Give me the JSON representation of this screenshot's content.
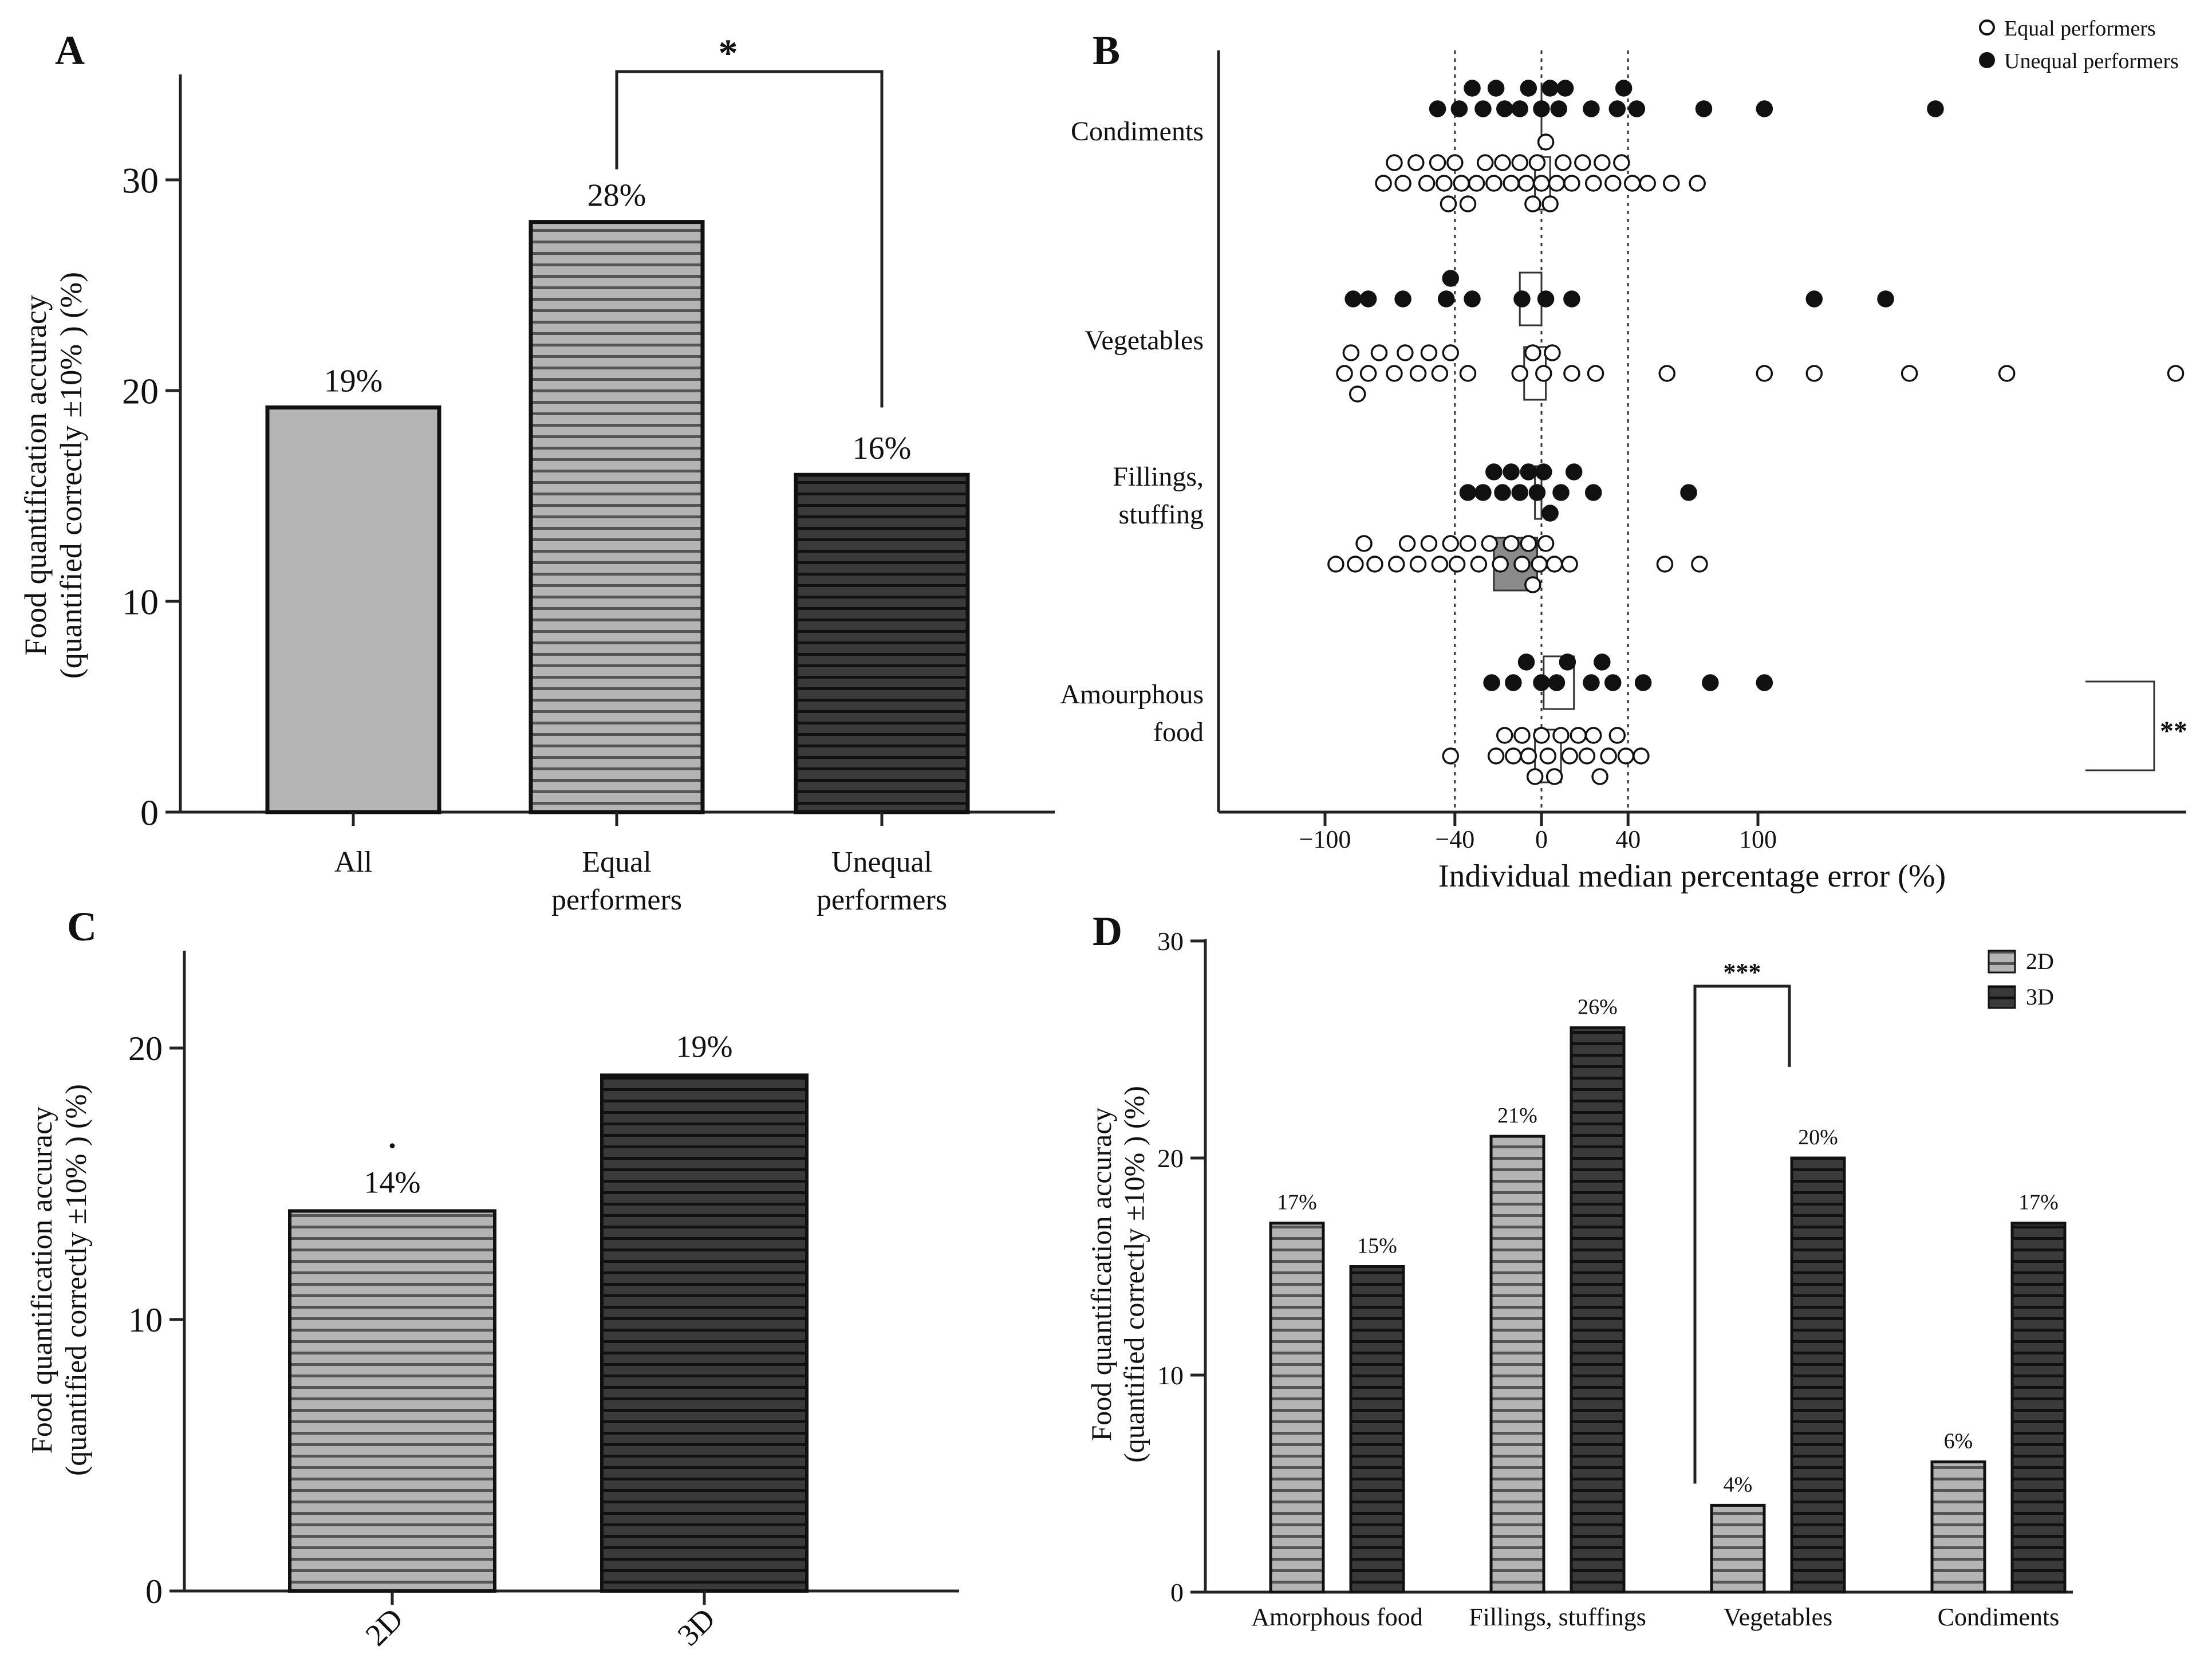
{
  "chart_data": [
    {
      "panel": "A",
      "type": "bar",
      "categories": [
        "All",
        "Equal performers",
        "Unequal performers"
      ],
      "category_lines": [
        [
          "All"
        ],
        [
          "Equal",
          "performers"
        ],
        [
          "Unequal",
          "performers"
        ]
      ],
      "values": [
        19.2,
        28,
        16
      ],
      "data_labels": [
        "19%",
        "28%",
        "16%"
      ],
      "ylabel_lines": [
        "Food quantification accuracy",
        "(quantified correctly ±10% ) (%)"
      ],
      "ylim": [
        0,
        35
      ],
      "yticks": [
        0,
        10,
        20,
        30
      ],
      "fills": [
        "#b4b4b4",
        "#b4b4b4",
        "#3a3a3a"
      ],
      "stripe_colors": [
        "",
        "#555555",
        "#111111"
      ],
      "significance": {
        "between": [
          "Equal performers",
          "Unequal performers"
        ],
        "label": "*"
      }
    },
    {
      "panel": "B",
      "type": "scatter",
      "xlabel": "Individual median percentage error (%)",
      "xlim": [
        -148,
        298
      ],
      "xticks": [
        -100,
        -40,
        0,
        40,
        100
      ],
      "xtick_labels": [
        "−100",
        "−40",
        "0",
        "40",
        "100"
      ],
      "reference_lines": [
        -40,
        0,
        40
      ],
      "legend": [
        {
          "label": "Equal performers",
          "marker": "open"
        },
        {
          "label": "Unequal performers",
          "marker": "filled"
        }
      ],
      "categories": [
        {
          "name_lines": [
            "Condiments"
          ],
          "unequal": [
            -48,
            -38,
            -32,
            -27,
            -21,
            -17,
            -10,
            -6,
            0,
            4,
            8,
            11,
            23,
            35,
            38,
            44,
            75,
            103,
            182
          ],
          "equal": [
            -73,
            -68,
            -64,
            -58,
            -53,
            -48,
            -45,
            -43,
            -40,
            -37,
            -34,
            -30,
            -26,
            -22,
            -18,
            -14,
            -10,
            -7,
            -4,
            -2,
            0,
            2,
            4,
            7,
            10,
            14,
            19,
            24,
            28,
            33,
            37,
            42,
            49,
            60,
            72
          ]
        },
        {
          "name_lines": [
            "Vegetables"
          ],
          "unequal": [
            -87,
            -80,
            -64,
            -44,
            -42,
            -32,
            -9,
            2,
            14,
            126,
            159
          ],
          "equal": [
            -91,
            -88,
            -85,
            -80,
            -75,
            -68,
            -63,
            -57,
            -52,
            -47,
            -42,
            -34,
            -10,
            -4,
            1,
            5,
            14,
            25,
            58,
            103,
            126,
            170,
            215,
            293
          ]
        },
        {
          "name_lines": [
            "Fillings,",
            "stuffing"
          ],
          "unequal": [
            -34,
            -27,
            -22,
            -18,
            -14,
            -10,
            -6,
            -2,
            1,
            4,
            9,
            15,
            24,
            68
          ],
          "equal": [
            -95,
            -86,
            -82,
            -77,
            -67,
            -62,
            -57,
            -52,
            -47,
            -42,
            -39,
            -34,
            -29,
            -24,
            -19,
            -14,
            -9,
            -6,
            -4,
            -1,
            2,
            6,
            13,
            57,
            73
          ]
        },
        {
          "name_lines": [
            "Amourphous",
            "food"
          ],
          "unequal": [
            -23,
            -13,
            -7,
            0,
            7,
            12,
            23,
            28,
            33,
            47,
            78,
            103
          ],
          "equal": [
            -42,
            -21,
            -17,
            -13,
            -9,
            -6,
            -3,
            0,
            3,
            6,
            9,
            13,
            17,
            21,
            24,
            27,
            31,
            35,
            39,
            46
          ]
        }
      ],
      "boxes": [
        {
          "category": "Condiments",
          "series": "unequal",
          "q1": 0,
          "q3": 0
        },
        {
          "category": "Condiments",
          "series": "equal",
          "q1": -3,
          "q3": 4
        },
        {
          "category": "Vegetables",
          "series": "unequal",
          "q1": -10,
          "q3": 0
        },
        {
          "category": "Vegetables",
          "series": "equal",
          "q1": -8,
          "q3": 2
        },
        {
          "category": "Fillings, stuffing",
          "series": "unequal",
          "q1": -3,
          "q3": 0
        },
        {
          "category": "Fillings, stuffing",
          "series": "equal",
          "q1": -22,
          "q3": -2
        },
        {
          "category": "Amourphous food",
          "series": "unequal",
          "q1": 1,
          "q3": 15
        },
        {
          "category": "Amourphous food",
          "series": "equal",
          "q1": -3,
          "q3": 9
        }
      ],
      "significance": {
        "category": "Amourphous food",
        "label": "**"
      }
    },
    {
      "panel": "C",
      "type": "bar",
      "categories": [
        "2D",
        "3D"
      ],
      "values": [
        14,
        19
      ],
      "data_labels": [
        "14%",
        "19%"
      ],
      "ylabel_lines": [
        "Food quantification accuracy",
        "(quantified correctly ±10% ) (%)"
      ],
      "ylim": [
        0,
        23.5
      ],
      "yticks": [
        0,
        10,
        20
      ],
      "fills": [
        "#b4b4b4",
        "#3a3a3a"
      ],
      "stripe_colors": [
        "#555555",
        "#111111"
      ],
      "significance": {
        "label": "."
      }
    },
    {
      "panel": "D",
      "type": "bar",
      "categories": [
        "Amorphous food",
        "Fillings, stuffings",
        "Vegetables",
        "Condiments"
      ],
      "series": [
        {
          "name": "2D",
          "values": [
            17,
            21,
            4,
            6
          ],
          "data_labels": [
            "17%",
            "21%",
            "4%",
            "6%"
          ],
          "fill": "#b4b4b4",
          "stripe": "#555555"
        },
        {
          "name": "3D",
          "values": [
            15,
            26,
            20,
            17
          ],
          "data_labels": [
            "15%",
            "26%",
            "20%",
            "17%"
          ],
          "fill": "#3a3a3a",
          "stripe": "#111111"
        }
      ],
      "ylabel_lines": [
        "Food quantification accuracy",
        "(quantified correctly ±10% ) (%)"
      ],
      "ylim": [
        0,
        30
      ],
      "yticks": [
        0,
        10,
        20,
        30
      ],
      "legend": [
        "2D",
        "3D"
      ],
      "significance": {
        "category": "Vegetables",
        "label": "***"
      }
    }
  ]
}
